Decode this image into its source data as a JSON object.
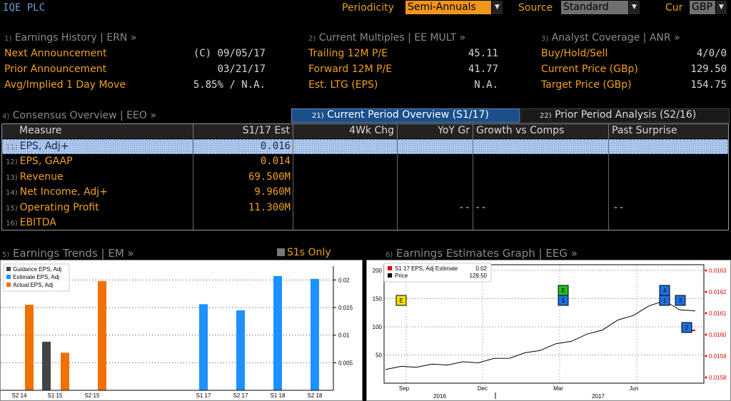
{
  "header": {
    "ticker": "IQE PLC",
    "periodicity_label": "Periodicity",
    "periodicity_value": "Semi-Annuals",
    "source_label": "Source",
    "source_value": "Standard",
    "cur_label": "Cur",
    "cur_value": "GBP",
    "dropdown_arrow": "▼"
  },
  "earnings_history": {
    "num": "1)",
    "title": "Earnings History | ERN »",
    "rows": [
      {
        "label": "Next Announcement",
        "value": "(C)  09/05/17"
      },
      {
        "label": "Prior Announcement",
        "value": "03/21/17"
      },
      {
        "label": "Avg/Implied 1 Day Move",
        "value": "5.85% / N.A."
      }
    ]
  },
  "current_multiples": {
    "num": "2)",
    "title": "Current Multiples | EE MULT »",
    "rows": [
      {
        "label": "Trailing 12M P/E",
        "value": "45.11"
      },
      {
        "label": "Forward 12M P/E",
        "value": "41.77"
      },
      {
        "label": "Est. LTG (EPS)",
        "value": "N.A."
      }
    ]
  },
  "analyst_coverage": {
    "num": "3)",
    "title": "Analyst Coverage | ANR »",
    "rows": [
      {
        "label": "Buy/Hold/Sell",
        "value": "4/0/0"
      },
      {
        "label": "Current Price (GBp)",
        "value": "129.50"
      },
      {
        "label": "Target Price (GBp)",
        "value": "154.75"
      }
    ]
  },
  "consensus": {
    "num": "4)",
    "title": "Consensus Overview | EEO »",
    "tabs": [
      {
        "num": "21)",
        "label": "Current Period Overview (S1/17)"
      },
      {
        "num": "22)",
        "label": "Prior Period Analysis (S2/16)"
      }
    ],
    "columns": [
      "Measure",
      "S1/17 Est",
      "4Wk Chg",
      "YoY Gr",
      "Growth vs Comps",
      "Past Surprise"
    ],
    "rows": [
      {
        "num": "11)",
        "measure": "EPS, Adj+",
        "est": "0.016"
      },
      {
        "num": "12)",
        "measure": "EPS, GAAP",
        "est": "0.014"
      },
      {
        "num": "13)",
        "measure": "Revenue",
        "est": "69.500M"
      },
      {
        "num": "14)",
        "measure": "Net Income, Adj+",
        "est": "9.960M"
      },
      {
        "num": "15)",
        "measure": "Operating Profit",
        "est": "11.300M",
        "yoy": "--",
        "comps": "--",
        "surprise": "--"
      },
      {
        "num": "16)",
        "measure": "EBITDA",
        "est": ""
      }
    ]
  },
  "earnings_trends": {
    "num": "5)",
    "title": "Earnings Trends | EM »",
    "s1s_label": "S1s Only",
    "colors": {
      "guidance": "#444444",
      "estimate": "#1e90ff",
      "actual": "#f07000"
    },
    "chart_data": {
      "type": "bar",
      "legend": [
        "Guidance EPS, Adj",
        "Estimate EPS, Adj",
        "Actual EPS, Adj"
      ],
      "legend_position": "top-left",
      "ylim": [
        0,
        0.0225
      ],
      "yticks": [
        "0.005",
        "0.01",
        "0.015",
        "0.02"
      ],
      "categories": [
        "S2 14",
        "S1 15",
        "S2 15",
        "S1 17",
        "S2 17",
        "S1 18",
        "S2 18"
      ],
      "bars": [
        {
          "x": "S2 14",
          "series": "Actual EPS, Adj",
          "value": 0.0155
        },
        {
          "x": "S1 15",
          "series": "Guidance EPS, Adj",
          "value": 0.0088
        },
        {
          "x": "S1 15",
          "series": "Actual EPS, Adj",
          "value": 0.0068
        },
        {
          "x": "S2 15",
          "series": "Actual EPS, Adj",
          "value": 0.0198
        },
        {
          "x": "S1 17",
          "series": "Estimate EPS, Adj",
          "value": 0.0156
        },
        {
          "x": "S2 17",
          "series": "Estimate EPS, Adj",
          "value": 0.0145
        },
        {
          "x": "S1 18",
          "series": "Estimate EPS, Adj",
          "value": 0.0207
        },
        {
          "x": "S2 18",
          "series": "Estimate EPS, Adj",
          "value": 0.0202
        }
      ]
    }
  },
  "estimates_graph": {
    "num": "6)",
    "title": "Earnings Estimates Graph | EEG »",
    "colors": {
      "estimate": "#e00000",
      "price": "#000000"
    },
    "chart_data": {
      "type": "line",
      "legend": [
        {
          "name": "S1 17 EPS, Adj Estimate",
          "value": "0.02"
        },
        {
          "name": "Price",
          "value": "129.50"
        }
      ],
      "legend_position": "top-left",
      "left_ylim": [
        0,
        210
      ],
      "left_yticks": [
        "50",
        "100",
        "150",
        "200"
      ],
      "right_yticks": [
        "0.0158",
        "0.0159",
        "0.0160",
        "0.0161",
        "0.0162",
        "0.0163"
      ],
      "x_month_labels": [
        "Sep",
        "Dec",
        "Mar",
        "Jun"
      ],
      "x_year_labels": [
        "2016",
        "2017"
      ],
      "price": [
        26,
        28,
        30,
        32,
        34,
        36,
        38,
        42,
        46,
        52,
        60,
        68,
        76,
        85,
        96,
        110,
        122,
        135,
        148,
        128,
        130
      ],
      "estimate_segment": [
        0.01601,
        0.01601
      ],
      "event_markers": [
        {
          "label": "E",
          "color": "#f0e000",
          "price": 150
        },
        {
          "label": "E",
          "color": "#20c020",
          "price": 165
        },
        {
          "label": "5",
          "color": "#1e70e0",
          "price": 150
        },
        {
          "label": "4",
          "color": "#1e70e0",
          "price": 165
        },
        {
          "label": "1",
          "color": "#1e70e0",
          "price": 150
        },
        {
          "label": "3",
          "color": "#1e70e0",
          "price": 150
        },
        {
          "label": "2",
          "color": "#1e70e0",
          "price": 105
        }
      ]
    }
  }
}
